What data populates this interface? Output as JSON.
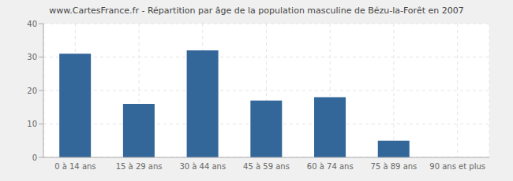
{
  "chart_data": {
    "type": "bar",
    "title": "www.CartesFrance.fr - Répartition par âge de la population masculine de Bézu-la-Forêt en 2007",
    "categories": [
      "0 à 14 ans",
      "15 à 29 ans",
      "30 à 44 ans",
      "45 à 59 ans",
      "60 à 74 ans",
      "75 à 89 ans",
      "90 ans et plus"
    ],
    "values": [
      31,
      16,
      32,
      17,
      18,
      5,
      0
    ],
    "color": "#336699",
    "ylim": [
      0,
      40
    ],
    "yticks": [
      0,
      10,
      20,
      30,
      40
    ],
    "grid": true
  }
}
